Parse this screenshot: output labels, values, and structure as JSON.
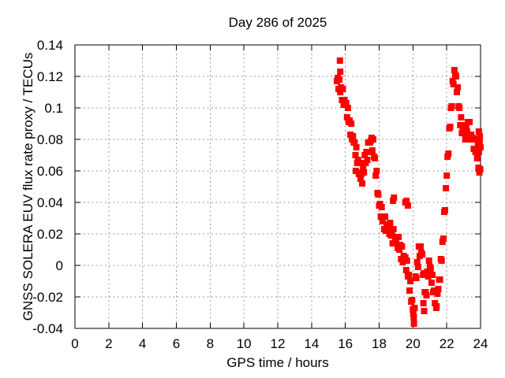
{
  "chart_data": {
    "type": "scatter",
    "title": "Day 286 of 2025",
    "xlabel": "GPS time / hours",
    "ylabel": "GNSS SOLERA EUV flux rate proxy / TECUs",
    "xlim": [
      0,
      24
    ],
    "ylim": [
      -0.04,
      0.14
    ],
    "xticks": [
      0,
      2,
      4,
      6,
      8,
      10,
      12,
      14,
      16,
      18,
      20,
      22,
      24
    ],
    "yticks": [
      -0.04,
      -0.02,
      0,
      0.02,
      0.04,
      0.06,
      0.08,
      0.1,
      0.12,
      0.14
    ],
    "grid": true,
    "legend": "none",
    "marker": "filled-square",
    "color": "#ff0000",
    "series_name": "EUV flux rate proxy",
    "points": [
      [
        15.5,
        0.117
      ],
      [
        15.55,
        0.119
      ],
      [
        15.6,
        0.112
      ],
      [
        15.65,
        0.118
      ],
      [
        15.7,
        0.11
      ],
      [
        15.75,
        0.113
      ],
      [
        15.8,
        0.105
      ],
      [
        15.85,
        0.112
      ],
      [
        15.9,
        0.102
      ],
      [
        15.95,
        0.105
      ],
      [
        16.0,
        0.102
      ],
      [
        16.05,
        0.103
      ],
      [
        16.1,
        0.094
      ],
      [
        16.15,
        0.1
      ],
      [
        16.2,
        0.091
      ],
      [
        16.25,
        0.092
      ],
      [
        16.3,
        0.083
      ],
      [
        16.35,
        0.09
      ],
      [
        16.4,
        0.08
      ],
      [
        16.45,
        0.082
      ],
      [
        16.5,
        0.078
      ],
      [
        16.55,
        0.078
      ],
      [
        16.6,
        0.07
      ],
      [
        16.65,
        0.075
      ],
      [
        16.7,
        0.065
      ],
      [
        16.75,
        0.067
      ],
      [
        16.8,
        0.058
      ],
      [
        16.85,
        0.065
      ],
      [
        16.9,
        0.055
      ],
      [
        16.95,
        0.058
      ],
      [
        17.0,
        0.059
      ],
      [
        17.05,
        0.063
      ],
      [
        17.1,
        0.059
      ],
      [
        17.15,
        0.07
      ],
      [
        17.2,
        0.065
      ],
      [
        17.25,
        0.072
      ],
      [
        17.3,
        0.067
      ],
      [
        17.35,
        0.078
      ],
      [
        17.4,
        0.072
      ],
      [
        17.45,
        0.078
      ],
      [
        17.5,
        0.079
      ],
      [
        17.55,
        0.081
      ],
      [
        17.6,
        0.073
      ],
      [
        17.65,
        0.08
      ],
      [
        17.7,
        0.069
      ],
      [
        17.75,
        0.068
      ],
      [
        17.8,
        0.057
      ],
      [
        17.85,
        0.06
      ],
      [
        17.9,
        0.046
      ],
      [
        17.95,
        0.045
      ],
      [
        18.0,
        0.038
      ],
      [
        18.05,
        0.039
      ],
      [
        18.1,
        0.031
      ],
      [
        18.15,
        0.037
      ],
      [
        18.2,
        0.028
      ],
      [
        18.25,
        0.031
      ],
      [
        18.3,
        0.023
      ],
      [
        18.35,
        0.031
      ],
      [
        18.4,
        0.022
      ],
      [
        18.45,
        0.026
      ],
      [
        18.5,
        0.024
      ],
      [
        18.55,
        0.026
      ],
      [
        18.6,
        0.02
      ],
      [
        18.65,
        0.027
      ],
      [
        18.7,
        0.019
      ],
      [
        18.75,
        0.022
      ],
      [
        18.8,
        0.014
      ],
      [
        18.85,
        0.023
      ],
      [
        18.9,
        0.014
      ],
      [
        18.95,
        0.018
      ],
      [
        19.0,
        0.016
      ],
      [
        19.05,
        0.018
      ],
      [
        19.1,
        0.011
      ],
      [
        19.15,
        0.018
      ],
      [
        19.2,
        0.01
      ],
      [
        19.25,
        0.013
      ],
      [
        19.3,
        0.004
      ],
      [
        19.35,
        0.012
      ],
      [
        19.4,
        0.002
      ],
      [
        19.45,
        0.006
      ],
      [
        19.5,
        0.003
      ],
      [
        19.55,
        0.005
      ],
      [
        19.6,
        -0.003
      ],
      [
        19.65,
        0.003
      ],
      [
        19.7,
        -0.007
      ],
      [
        19.75,
        -0.006
      ],
      [
        19.8,
        -0.016
      ],
      [
        19.85,
        -0.01
      ],
      [
        19.9,
        -0.023
      ],
      [
        19.95,
        -0.022
      ],
      [
        20.0,
        -0.028
      ],
      [
        20.05,
        -0.033
      ],
      [
        20.1,
        -0.027
      ],
      [
        20.15,
        -0.007
      ],
      [
        20.2,
        -0.008
      ],
      [
        20.25,
        0.002
      ],
      [
        20.3,
        -0.001
      ],
      [
        20.35,
        0.012
      ],
      [
        20.4,
        0.006
      ],
      [
        20.45,
        0.012
      ],
      [
        20.5,
        0.008
      ],
      [
        20.55,
        0.007
      ],
      [
        20.6,
        -0.006
      ],
      [
        20.65,
        -0.005
      ],
      [
        20.7,
        -0.017
      ],
      [
        20.75,
        -0.017
      ],
      [
        20.8,
        -0.019
      ],
      [
        20.85,
        -0.004
      ],
      [
        20.9,
        -0.007
      ],
      [
        20.95,
        0.003
      ],
      [
        21.0,
        -0.001
      ],
      [
        21.05,
        -0.002
      ],
      [
        21.1,
        -0.011
      ],
      [
        21.15,
        -0.006
      ],
      [
        21.2,
        -0.017
      ],
      [
        21.25,
        -0.016
      ],
      [
        21.3,
        -0.024
      ],
      [
        21.35,
        -0.017
      ],
      [
        21.4,
        -0.026
      ],
      [
        21.45,
        -0.018
      ],
      [
        21.5,
        -0.015
      ],
      [
        21.55,
        -0.009
      ],
      [
        21.6,
        -0.009
      ],
      [
        21.65,
        0.004
      ],
      [
        21.7,
        0.003
      ],
      [
        21.75,
        0.015
      ],
      [
        21.8,
        0.017
      ],
      [
        21.85,
        0.034
      ],
      [
        21.9,
        0.035
      ],
      [
        21.95,
        0.049
      ],
      [
        22.0,
        0.057
      ],
      [
        22.05,
        0.069
      ],
      [
        22.1,
        0.071
      ],
      [
        22.15,
        0.087
      ],
      [
        22.2,
        0.088
      ],
      [
        22.25,
        0.1
      ],
      [
        22.3,
        0.101
      ],
      [
        22.35,
        0.117
      ],
      [
        22.4,
        0.115
      ],
      [
        22.45,
        0.124
      ],
      [
        22.5,
        0.121
      ],
      [
        22.55,
        0.12
      ],
      [
        22.6,
        0.11
      ],
      [
        22.65,
        0.113
      ],
      [
        22.7,
        0.101
      ],
      [
        22.75,
        0.1
      ],
      [
        22.8,
        0.089
      ],
      [
        22.85,
        0.094
      ],
      [
        22.9,
        0.084
      ],
      [
        22.95,
        0.086
      ],
      [
        23.0,
        0.084
      ],
      [
        23.05,
        0.085
      ],
      [
        23.1,
        0.08
      ],
      [
        23.15,
        0.089
      ],
      [
        23.2,
        0.085
      ],
      [
        23.25,
        0.091
      ],
      [
        23.3,
        0.083
      ],
      [
        23.35,
        0.091
      ],
      [
        23.4,
        0.08
      ],
      [
        23.45,
        0.083
      ],
      [
        23.5,
        0.08
      ],
      [
        23.55,
        0.081
      ],
      [
        23.6,
        0.074
      ],
      [
        23.65,
        0.08
      ],
      [
        23.7,
        0.072
      ],
      [
        23.75,
        0.074
      ],
      [
        23.8,
        0.068
      ],
      [
        23.85,
        0.078
      ],
      [
        23.9,
        0.072
      ],
      [
        23.95,
        0.078
      ],
      [
        24.0,
        0.075
      ],
      [
        15.68,
        0.13
      ],
      [
        15.7,
        0.123
      ],
      [
        16.62,
        0.06
      ],
      [
        17.0,
        0.052
      ],
      [
        18.82,
        0.041
      ],
      [
        18.88,
        0.043
      ],
      [
        19.55,
        0.04
      ],
      [
        19.62,
        0.041
      ],
      [
        19.7,
        0.038
      ],
      [
        20.02,
        -0.031
      ],
      [
        20.06,
        -0.037
      ],
      [
        20.62,
        -0.024
      ],
      [
        20.66,
        -0.029
      ],
      [
        21.38,
        -0.027
      ],
      [
        23.88,
        0.062
      ],
      [
        23.93,
        0.059
      ],
      [
        23.98,
        0.061
      ],
      [
        23.9,
        0.085
      ],
      [
        23.96,
        0.082
      ]
    ]
  }
}
